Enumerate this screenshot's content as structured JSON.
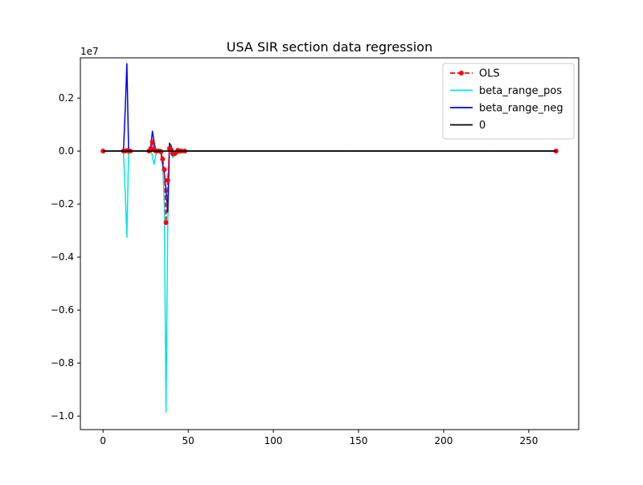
{
  "chart_data": {
    "type": "line",
    "title": "USA SIR section data regression",
    "xlabel": "",
    "ylabel": "",
    "y_scale_label": "1e7",
    "xlim": [
      -13.3,
      279.3
    ],
    "ylim": [
      -10510000.0,
      3520000.0
    ],
    "x_ticks": [
      0,
      50,
      100,
      150,
      200,
      250
    ],
    "x_tick_labels": [
      "0",
      "50",
      "100",
      "150",
      "200",
      "250"
    ],
    "y_ticks": [
      2000000.0,
      0,
      -2000000.0,
      -4000000.0,
      -6000000.0,
      -8000000.0,
      -10000000.0
    ],
    "y_tick_labels": [
      "0.2",
      "0.0",
      "−0.2",
      "−0.4",
      "−0.6",
      "−0.8",
      "−1.0"
    ],
    "grid": false,
    "legend_position": "top-right",
    "series": [
      {
        "name": "beta_range_pos",
        "color": "#00e5e5",
        "style": "solid",
        "x": [
          0,
          12,
          13,
          14,
          15,
          16,
          27,
          28,
          29,
          30,
          31,
          32,
          33,
          34,
          35,
          36,
          37,
          38,
          39,
          40,
          41,
          42,
          43,
          44,
          45,
          46,
          48,
          266
        ],
        "y": [
          0,
          0,
          -1500000,
          -3250000,
          -100000,
          0,
          0,
          100000,
          -200000,
          -500000,
          -150000,
          0,
          0,
          -100000,
          -500000,
          -2000000,
          -9850000,
          -2750000,
          -100000,
          -50000,
          -250000,
          -150000,
          -100000,
          0,
          20000,
          0,
          0,
          0
        ]
      },
      {
        "name": "beta_range_neg",
        "color": "#0000ee",
        "style": "solid",
        "x": [
          0,
          12,
          13,
          14,
          15,
          16,
          27,
          28,
          29,
          30,
          31,
          32,
          33,
          34,
          35,
          36,
          37,
          38,
          39,
          40,
          41,
          42,
          43,
          44,
          45,
          46,
          48,
          266
        ],
        "y": [
          0,
          0,
          1500000,
          3300000,
          100000,
          0,
          0,
          150000,
          750000,
          350000,
          0,
          0,
          0,
          -50000,
          -500000,
          -800000,
          -1500000,
          -2300000,
          300000,
          200000,
          -100000,
          -150000,
          50000,
          50000,
          0,
          0,
          0,
          0
        ]
      },
      {
        "name": "OLS",
        "color": "#ff0000",
        "style": "dashed",
        "marker": "circle",
        "x": [
          0,
          12,
          13,
          14,
          15,
          16,
          27,
          28,
          29,
          30,
          31,
          32,
          33,
          34,
          35,
          36,
          37,
          38,
          39,
          40,
          41,
          42,
          43,
          44,
          45,
          46,
          48,
          266
        ],
        "y": [
          0,
          0,
          0,
          20000,
          0,
          0,
          0,
          100000,
          350000,
          50000,
          0,
          0,
          0,
          -20000,
          -300000,
          -700000,
          -2700000,
          -1100000,
          100000,
          50000,
          -100000,
          -100000,
          -50000,
          30000,
          0,
          0,
          0,
          0
        ]
      },
      {
        "name": "0",
        "color": "#000000",
        "style": "solid",
        "x": [
          0,
          266
        ],
        "y": [
          0,
          0
        ]
      }
    ],
    "legend_order": [
      "OLS",
      "beta_range_pos",
      "beta_range_neg",
      "0"
    ]
  }
}
